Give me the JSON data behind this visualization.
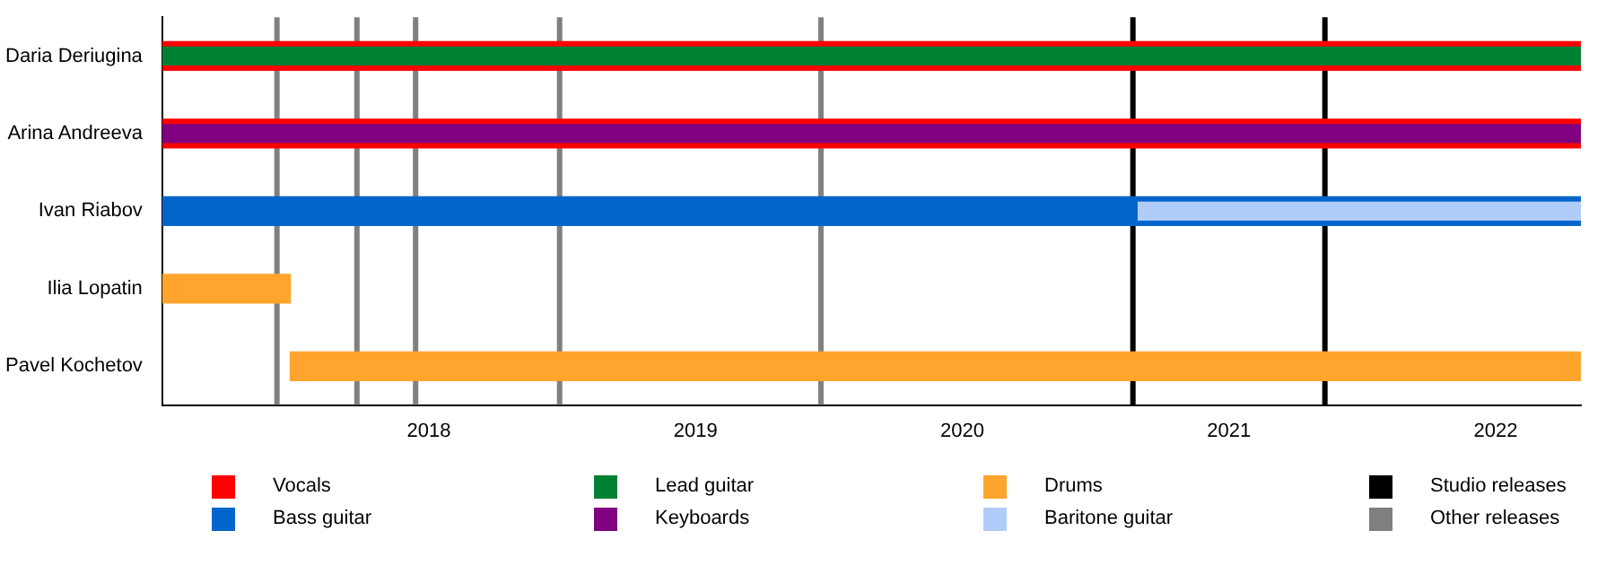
{
  "chart_data": {
    "type": "bar",
    "orientation": "horizontal",
    "categories": [
      "Daria Deriugina",
      "Arina Andreeva",
      "Ivan Riabov",
      "Ilia Lopatin",
      "Pavel Kochetov"
    ],
    "series": [
      {
        "name": "Vocals",
        "color": "#ff0000",
        "base": [
          2017.0,
          2017.0,
          null,
          null,
          null
        ],
        "values": [
          5.32,
          5.32,
          null,
          null,
          null
        ]
      },
      {
        "name": "Bass guitar",
        "color": "#0066cc",
        "base": [
          null,
          null,
          2017.0,
          null,
          null
        ],
        "values": [
          null,
          null,
          5.32,
          null,
          null
        ]
      },
      {
        "name": "Lead guitar",
        "color": "#008033",
        "base": [
          2017.0,
          null,
          null,
          null,
          null
        ],
        "values": [
          5.32,
          null,
          null,
          null,
          null
        ]
      },
      {
        "name": "Keyboards",
        "color": "#800080",
        "base": [
          null,
          2017.0,
          null,
          null,
          null
        ],
        "values": [
          null,
          5.32,
          null,
          null,
          null
        ]
      },
      {
        "name": "Drums",
        "color": "#ffa42c",
        "base": [
          null,
          null,
          null,
          2017.0,
          2017.48
        ],
        "values": [
          null,
          null,
          null,
          0.48,
          4.84
        ]
      },
      {
        "name": "Baritone guitar",
        "color": "#b0ccf8",
        "base": [
          null,
          null,
          2020.66,
          null,
          null
        ],
        "values": [
          null,
          null,
          1.66,
          null,
          null
        ]
      }
    ],
    "xlim": [
      2017.0,
      2022.32
    ],
    "xticks": [
      2018,
      2019,
      2020,
      2021,
      2022
    ],
    "ref_lines": [
      {
        "axis": "x",
        "value": 2020.64,
        "label": "Studio releases",
        "color": "#000000"
      },
      {
        "axis": "x",
        "value": 2021.36,
        "color": "#000000"
      },
      {
        "axis": "x",
        "value": 2017.43,
        "label": "Other releases",
        "color": "#808080"
      },
      {
        "axis": "x",
        "value": 2017.73,
        "color": "#808080"
      },
      {
        "axis": "x",
        "value": 2017.95,
        "color": "#808080"
      },
      {
        "axis": "x",
        "value": 2018.49,
        "color": "#808080"
      },
      {
        "axis": "x",
        "value": 2019.47,
        "color": "#808080"
      }
    ],
    "grid": false,
    "legend": "bottom"
  }
}
